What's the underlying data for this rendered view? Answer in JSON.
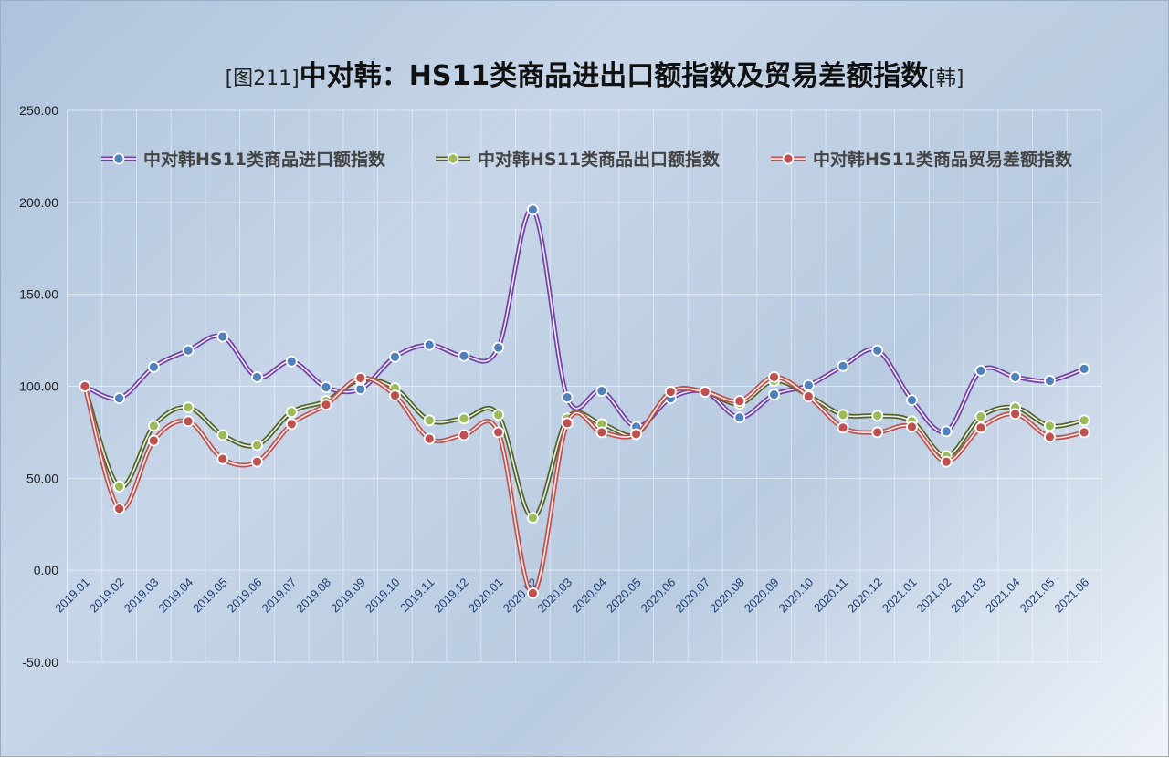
{
  "chart_data": {
    "type": "line",
    "title_prefix": "[图211]",
    "title_main": "中对韩：HS11类商品进出口额指数及贸易差额指数",
    "title_suffix": "[韩]",
    "ylim": [
      -50,
      250
    ],
    "yticks": [
      "250.00",
      "200.00",
      "150.00",
      "100.00",
      "50.00",
      "0.00",
      "-50.00"
    ],
    "ytick_values": [
      250,
      200,
      150,
      100,
      50,
      0,
      -50
    ],
    "categories": [
      "2019.01",
      "2019.02",
      "2019.03",
      "2019.04",
      "2019.05",
      "2019.06",
      "2019.07",
      "2019.08",
      "2019.09",
      "2019.10",
      "2019.11",
      "2019.12",
      "2020.01",
      "2020.02",
      "2020.03",
      "2020.04",
      "2020.05",
      "2020.06",
      "2020.07",
      "2020.08",
      "2020.09",
      "2020.10",
      "2020.11",
      "2020.12",
      "2021.01",
      "2021.02",
      "2021.03",
      "2021.04",
      "2021.05",
      "2021.06"
    ],
    "grid": true,
    "legend_position": "top",
    "series": [
      {
        "name": "中对韩HS11类商品进口额指数",
        "color": "#7040a8",
        "marker_color": "#4f81bd",
        "values": [
          100.0,
          93.5,
          110.5,
          119.5,
          127.0,
          105.0,
          113.5,
          99.5,
          98.5,
          116.0,
          122.5,
          116.5,
          121.0,
          196.0,
          94.0,
          97.5,
          78.0,
          93.5,
          97.0,
          83.0,
          95.5,
          100.5,
          111.0,
          119.5,
          92.5,
          75.5,
          108.5,
          105.0,
          103.0,
          109.5
        ]
      },
      {
        "name": "中对韩HS11类商品出口额指数",
        "color": "#4f6228",
        "marker_color": "#9bbb59",
        "values": [
          100.0,
          45.5,
          78.5,
          88.5,
          73.5,
          68.0,
          86.0,
          92.0,
          103.5,
          99.0,
          81.5,
          82.5,
          84.5,
          28.5,
          82.5,
          79.5,
          74.0,
          97.0,
          97.0,
          90.5,
          103.0,
          95.0,
          84.5,
          84.0,
          81.0,
          62.0,
          83.5,
          88.5,
          78.5,
          81.5
        ]
      },
      {
        "name": "中对韩HS11类商品贸易差额指数",
        "color": "#c0504d",
        "marker_color": "#c0504d",
        "values": [
          100.0,
          33.5,
          70.5,
          81.0,
          60.5,
          59.0,
          79.5,
          90.0,
          104.5,
          95.0,
          71.5,
          73.5,
          75.0,
          -12.5,
          80.0,
          75.0,
          74.0,
          97.0,
          97.0,
          92.0,
          105.0,
          94.5,
          77.5,
          75.0,
          78.0,
          59.0,
          77.5,
          85.0,
          72.5,
          75.0
        ]
      }
    ]
  }
}
